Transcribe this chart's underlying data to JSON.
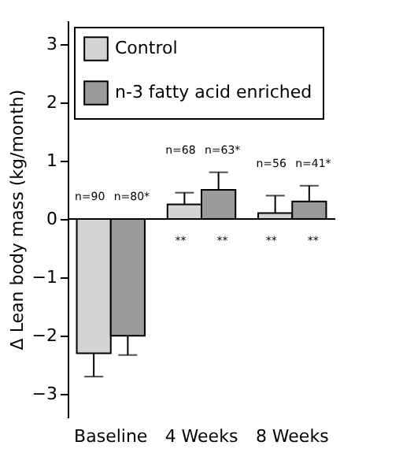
{
  "chart_data": {
    "type": "bar",
    "ylabel": "Δ Lean body mass (kg/month)",
    "categories": [
      "Baseline",
      "4 Weeks",
      "8 Weeks"
    ],
    "series": [
      {
        "name": "Control",
        "color": "#d4d4d4",
        "values": [
          -2.3,
          0.25,
          0.1
        ],
        "errors": [
          [
            -2.7,
            -2.3
          ],
          [
            0.25,
            0.45
          ],
          [
            0.1,
            0.4
          ]
        ]
      },
      {
        "name": "n-3 fatty acid enriched",
        "color": "#9a9a9a",
        "values": [
          -2.0,
          0.5,
          0.3
        ],
        "errors": [
          [
            -2.33,
            -2.0
          ],
          [
            0.5,
            0.8
          ],
          [
            0.3,
            0.57
          ]
        ]
      }
    ],
    "ylim": [
      -3.4,
      3.4
    ],
    "yticks": [
      {
        "value": -3,
        "label": "−3"
      },
      {
        "value": -2,
        "label": "−2"
      },
      {
        "value": -1,
        "label": "−1"
      },
      0,
      1,
      2,
      3
    ],
    "legend": "top left",
    "annotations": [
      "n=90",
      "n=80*",
      "n=68",
      "n=63*",
      "n=56",
      "n=41*",
      "**",
      "**",
      "**",
      "**"
    ]
  }
}
